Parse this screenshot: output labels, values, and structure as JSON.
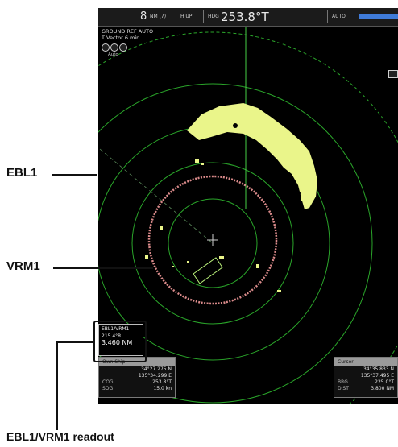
{
  "topbar": {
    "range": "8",
    "range_unit": "NM (7)",
    "orientation": "H UP",
    "hdg_label": "HDG",
    "heading": "253.8°T",
    "gain_label": "AUTO"
  },
  "mode": {
    "line1": "GROUND REF AUTO",
    "line2": "T Vector 6 min",
    "buttons_sub": "Auto"
  },
  "ebl_vrm_readout": {
    "title": "EBL1/VRM1",
    "bearing": "215.4°R",
    "range": "3.460 NM"
  },
  "own_ship": {
    "title": "Own Ship",
    "lat": "34°27.275 N",
    "lon": "135°34.299 E",
    "cog_label": "COG",
    "cog": "253.8°T",
    "sog_label": "SOG",
    "sog": "15.0 kn"
  },
  "cursor": {
    "title": "Cursor",
    "lat": "34°35.833 N",
    "lon": "135°37.495 E",
    "brg_label": "BRG",
    "brg": "225.0°T",
    "dist_label": "DIST",
    "dist": "3.800 NM"
  },
  "callouts": {
    "ebl1": "EBL1",
    "vrm1": "VRM1",
    "readout": "EBL1/VRM1 readout"
  },
  "colors": {
    "ring": "#2aa52a",
    "echo": "#eaf58a",
    "vrm": "#d98a8a",
    "gain_bar": "#3f7bd9"
  }
}
